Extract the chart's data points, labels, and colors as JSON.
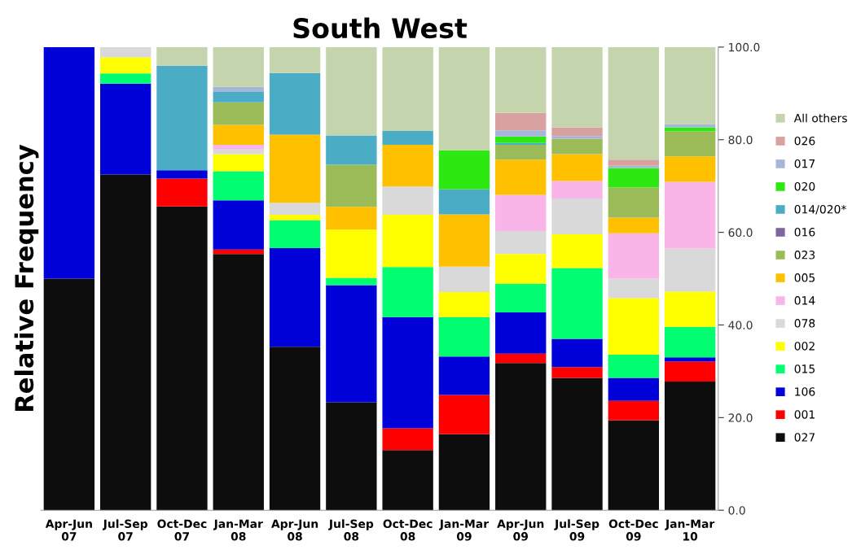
{
  "chart_data": {
    "type": "bar",
    "stacked": true,
    "title": "South West",
    "ylabel": "Relative Frequency",
    "categories": [
      "Apr-Jun\n07",
      "Jul-Sep\n07",
      "Oct-Dec\n07",
      "Jan-Mar\n08",
      "Apr-Jun\n08",
      "Jul-Sep\n08",
      "Oct-Dec\n08",
      "Jan-Mar\n09",
      "Apr-Jun\n09",
      "Jul-Sep\n09",
      "Oct-Dec\n09",
      "Jan-Mar\n10"
    ],
    "ylim": [
      0,
      100
    ],
    "yticks": [
      {
        "value": 0,
        "label": "0.0"
      },
      {
        "value": 20,
        "label": "20.0"
      },
      {
        "value": 40,
        "label": "40.0"
      },
      {
        "value": 60,
        "label": "60.0"
      },
      {
        "value": 80,
        "label": "80.0"
      },
      {
        "value": 100,
        "label": "100.0"
      }
    ],
    "legend": "right",
    "grid": false,
    "series": [
      {
        "name": "027",
        "color": "#0d0d0d",
        "values": [
          50.0,
          72.5,
          65.6,
          55.3,
          35.3,
          23.3,
          13.0,
          16.4,
          31.8,
          28.6,
          19.4,
          27.8
        ]
      },
      {
        "name": "001",
        "color": "#ff0000",
        "values": [
          null,
          null,
          6.0,
          1.0,
          null,
          null,
          4.7,
          8.5,
          2.0,
          2.3,
          4.2,
          4.3
        ]
      },
      {
        "name": "106",
        "color": "#0000d8",
        "values": [
          50.0,
          19.6,
          1.8,
          10.6,
          21.3,
          25.3,
          24.0,
          8.3,
          8.9,
          6.1,
          5.0,
          0.9
        ]
      },
      {
        "name": "015",
        "color": "#00ff70",
        "values": [
          null,
          2.2,
          null,
          6.3,
          6.0,
          1.6,
          10.8,
          8.5,
          6.2,
          15.3,
          5.0,
          6.6
        ]
      },
      {
        "name": "002",
        "color": "#ffff00",
        "values": [
          null,
          3.5,
          null,
          3.7,
          1.2,
          10.4,
          11.3,
          5.4,
          6.4,
          7.3,
          12.2,
          7.6
        ]
      },
      {
        "name": "078",
        "color": "#d9d9d9",
        "values": [
          null,
          2.2,
          null,
          1.0,
          2.6,
          null,
          6.1,
          5.5,
          5.0,
          7.7,
          4.2,
          9.3
        ]
      },
      {
        "name": "014",
        "color": "#f9b4e8",
        "values": [
          null,
          null,
          null,
          1.0,
          null,
          null,
          null,
          null,
          7.8,
          3.8,
          9.8,
          14.4
        ]
      },
      {
        "name": "005",
        "color": "#ffc000",
        "values": [
          null,
          null,
          null,
          4.3,
          14.7,
          4.9,
          9.0,
          11.3,
          7.6,
          5.8,
          3.4,
          5.5
        ]
      },
      {
        "name": "023",
        "color": "#9bbb59",
        "values": [
          null,
          null,
          null,
          4.9,
          null,
          9.1,
          null,
          null,
          3.2,
          3.3,
          6.5,
          5.4
        ]
      },
      {
        "name": "016",
        "color": "#8064a2",
        "values": [
          null,
          null,
          null,
          null,
          null,
          null,
          null,
          null,
          null,
          null,
          null,
          null
        ]
      },
      {
        "name": "014/020*",
        "color": "#4bacc6",
        "values": [
          null,
          null,
          22.6,
          2.2,
          13.3,
          6.3,
          3.0,
          5.4,
          0.4,
          null,
          null,
          null
        ]
      },
      {
        "name": "020",
        "color": "#2ee812",
        "values": [
          null,
          null,
          null,
          null,
          null,
          null,
          null,
          8.4,
          1.4,
          null,
          4.2,
          0.9
        ]
      },
      {
        "name": "017",
        "color": "#a5b6d8",
        "values": [
          null,
          null,
          null,
          1.1,
          null,
          null,
          null,
          null,
          1.3,
          0.6,
          0.5,
          0.7
        ]
      },
      {
        "name": "026",
        "color": "#d9a0a0",
        "values": [
          null,
          null,
          null,
          null,
          null,
          null,
          null,
          null,
          3.8,
          1.9,
          1.3,
          null
        ]
      },
      {
        "name": "All others",
        "color": "#c4d4ac",
        "values": [
          null,
          null,
          4.0,
          8.6,
          5.6,
          19.1,
          18.1,
          22.3,
          14.2,
          17.3,
          24.3,
          16.6
        ]
      }
    ]
  }
}
